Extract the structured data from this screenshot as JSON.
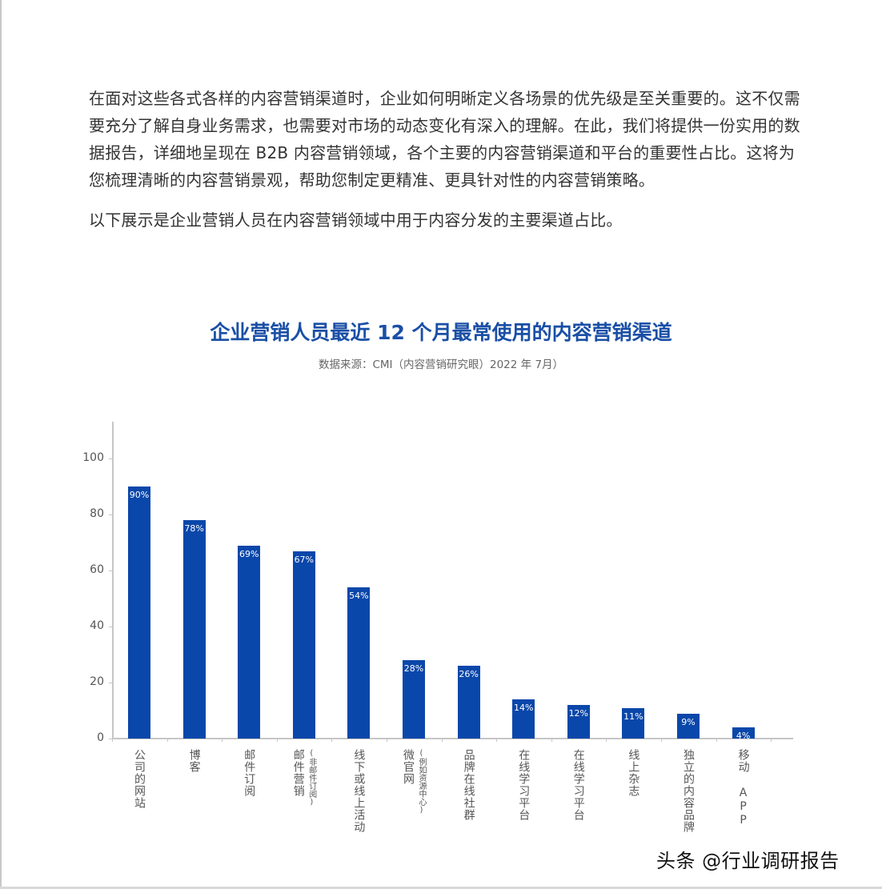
{
  "intro": {
    "paragraph1": "在面对这些各式各样的内容营销渠道时，企业如何明晰定义各场景的优先级是至关重要的。这不仅需要充分了解自身业务需求，也需要对市场的动态变化有深入的理解。在此，我们将提供一份实用的数据报告，详细地呈现在 B2B 内容营销领域，各个主要的内容营销渠道和平台的重要性占比。这将为您梳理清晰的内容营销景观，帮助您制定更精准、更具针对性的内容营销策略。",
    "paragraph2": "以下展示是企业营销人员在内容营销领域中用于内容分发的主要渠道占比。"
  },
  "chart": {
    "title": "企业营销人员最近 12 个月最常使用的内容营销渠道",
    "source": "数据来源：CMI（内容营销研究眼）2022 年 7月）",
    "bar_color": "#0a47aa",
    "title_color": "#1a4fa6",
    "y_ticks": [
      "0",
      "20",
      "40",
      "60",
      "80",
      "100"
    ],
    "bars": [
      {
        "label": "公司的网站",
        "sub": "",
        "value_label": "90%"
      },
      {
        "label": "博客",
        "sub": "",
        "value_label": "78%"
      },
      {
        "label": "邮件订阅",
        "sub": "",
        "value_label": "69%"
      },
      {
        "label": "邮件营销",
        "sub": "(非邮件订阅)",
        "value_label": "67%"
      },
      {
        "label": "线下或线上活动",
        "sub": "",
        "value_label": "54%"
      },
      {
        "label": "微官网",
        "sub": "(例如资源中心)",
        "value_label": "28%"
      },
      {
        "label": "品牌在线社群",
        "sub": "",
        "value_label": "26%"
      },
      {
        "label": "在线学习平台",
        "sub": "",
        "value_label": "14%"
      },
      {
        "label": "在线学习平台",
        "sub": "",
        "value_label": "12%"
      },
      {
        "label": "线上杂志",
        "sub": "",
        "value_label": "11%"
      },
      {
        "label": "独立的内容品牌",
        "sub": "",
        "value_label": "9%"
      },
      {
        "label": "移动 APP",
        "sub": "",
        "value_label": "4%"
      }
    ]
  },
  "chart_data": {
    "type": "bar",
    "title": "企业营销人员最近 12 个月最常使用的内容营销渠道",
    "subtitle": "数据来源：CMI（内容营销研究眼）2022 年 7月）",
    "categories": [
      "公司的网站",
      "博客",
      "邮件订阅",
      "邮件营销(非邮件订阅)",
      "线下或线上活动",
      "微官网(例如资源中心)",
      "品牌在线社群",
      "在线学习平台",
      "在线学习平台",
      "线上杂志",
      "独立的内容品牌",
      "移动 APP"
    ],
    "values": [
      90,
      78,
      69,
      67,
      54,
      28,
      26,
      14,
      12,
      11,
      9,
      4
    ],
    "data_labels": [
      "90%",
      "78%",
      "69%",
      "67%",
      "54%",
      "28%",
      "26%",
      "14%",
      "12%",
      "11%",
      "9%",
      "4%"
    ],
    "xlabel": "",
    "ylabel": "",
    "ylim": [
      0,
      110
    ],
    "yticks": [
      0,
      20,
      40,
      60,
      80,
      100
    ],
    "grid": false,
    "legend": null,
    "series_color": "#0a47aa"
  },
  "watermark": "头条 @行业调研报告"
}
